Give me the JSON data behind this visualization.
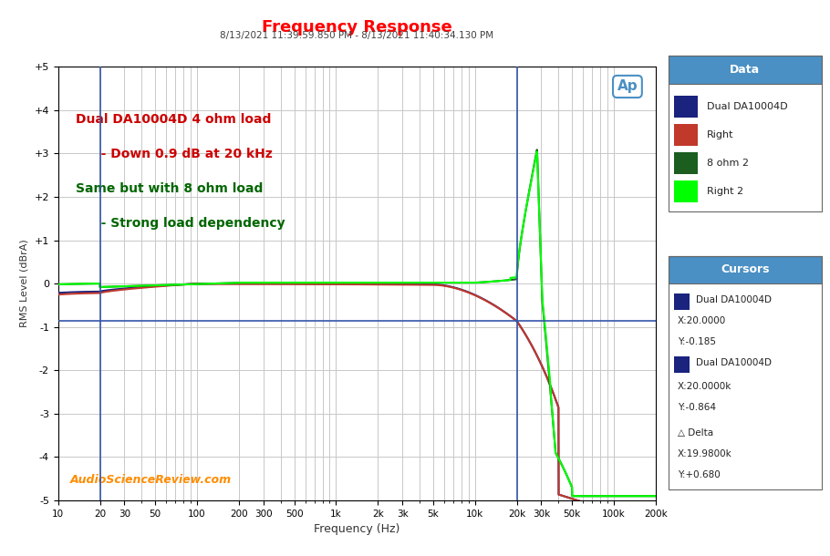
{
  "title": "Frequency Response",
  "subtitle": "8/13/2021 11:39:59.850 PM - 8/13/2021 11:40:34.130 PM",
  "xlabel": "Frequency (Hz)",
  "ylabel": "RMS Level (dBrA)",
  "xlim_log": [
    10,
    200000
  ],
  "ylim": [
    -5,
    5
  ],
  "yticks": [
    -5,
    -4,
    -3,
    -2,
    -1,
    0,
    1,
    2,
    3,
    4,
    5
  ],
  "xtick_labels": [
    "10",
    "20",
    "30",
    "50",
    "100",
    "200",
    "300",
    "500",
    "1k",
    "2k",
    "3k",
    "5k",
    "10k",
    "20k",
    "30k",
    "50k",
    "100k",
    "200k"
  ],
  "xtick_values": [
    10,
    20,
    30,
    50,
    100,
    200,
    300,
    500,
    1000,
    2000,
    3000,
    5000,
    10000,
    20000,
    30000,
    50000,
    100000,
    200000
  ],
  "bg_color": "#ffffff",
  "plot_bg_color": "#ffffff",
  "grid_color": "#c8c8c8",
  "title_color": "#ff0000",
  "subtitle_color": "#404040",
  "line_colors": {
    "ch1": "#1a237e",
    "ch2": "#c0392b",
    "ch3": "#1b5e20",
    "ch4": "#00ff00"
  },
  "legend_header_bg": "#4a90c4",
  "annotation_text1": "Dual DA10004D 4 ohm load",
  "annotation_text2": "   - Down 0.9 dB at 20 kHz",
  "annotation_text3": "Same but with 8 ohm load",
  "annotation_text4": "   - Strong load dependency",
  "annotation_color1": "#cc0000",
  "annotation_color2": "#cc0000",
  "annotation_color3": "#006600",
  "annotation_color4": "#006600",
  "watermark": "AudioScienceReview.com",
  "watermark_color": "#ff8c00",
  "cursor_vline1_x": 20,
  "cursor_hline1_y": -0.864,
  "cursor_vline2_x": 20000,
  "ap_logo_color": "#4a90c4"
}
